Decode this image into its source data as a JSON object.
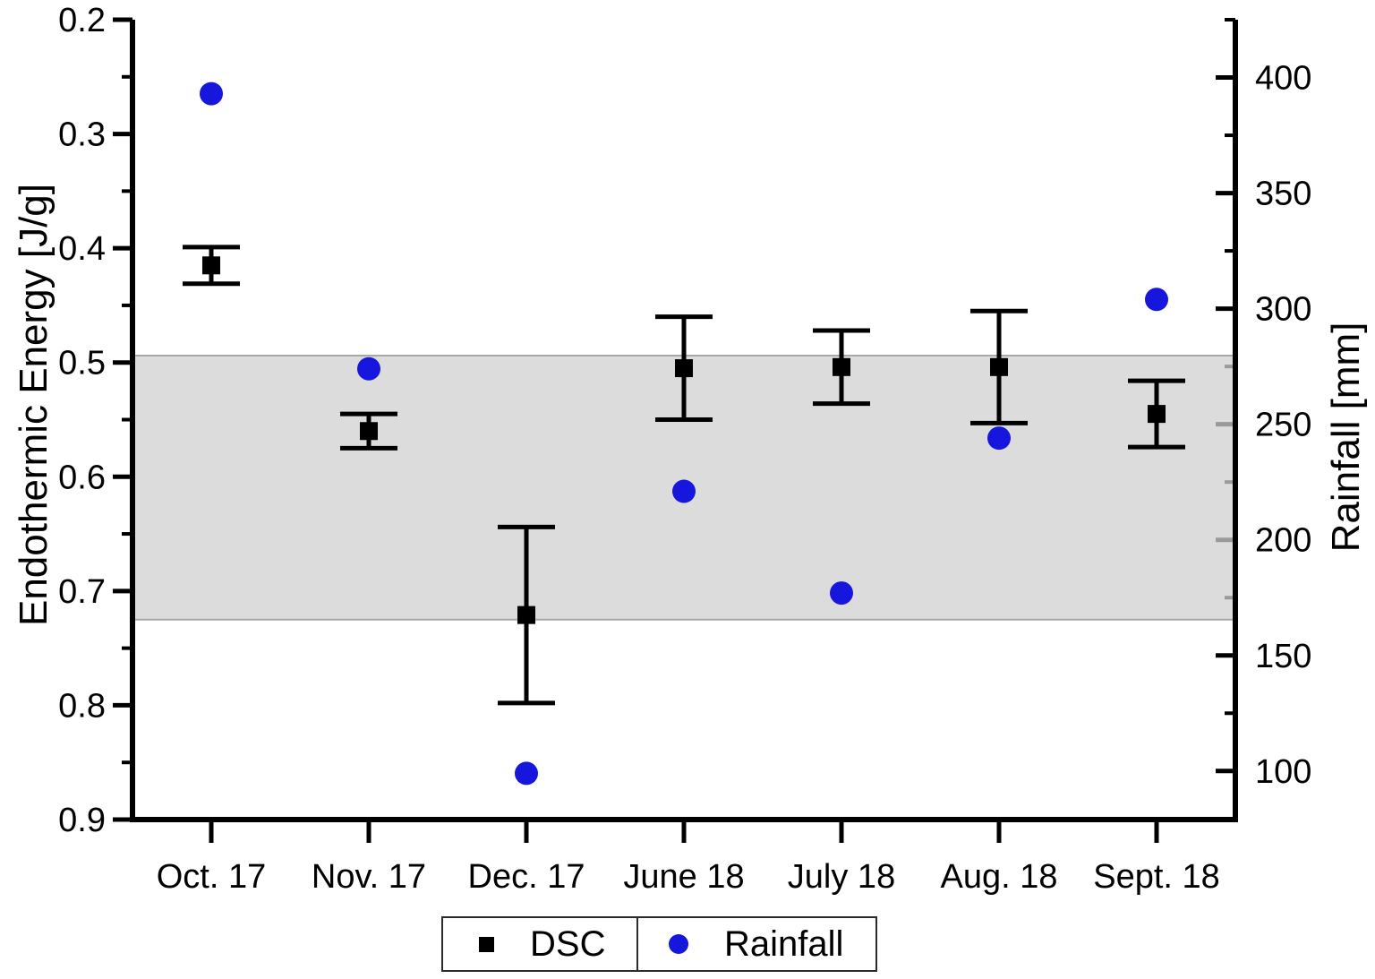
{
  "chart_data": {
    "type": "scatter",
    "title": "",
    "categories": [
      "Oct. 17",
      "Nov. 17",
      "Dec. 17",
      "June 18",
      "July 18",
      "Aug. 18",
      "Sept. 18"
    ],
    "left_axis": {
      "label": "Endothermic Energy [J/g]",
      "min": 0.2,
      "max": 0.9,
      "inverted": true,
      "major_ticks": [
        0.2,
        0.3,
        0.4,
        0.5,
        0.6,
        0.7,
        0.8,
        0.9
      ],
      "minor_ticks": [
        0.25,
        0.35,
        0.45,
        0.55,
        0.65,
        0.75,
        0.85
      ]
    },
    "right_axis": {
      "label": "Rainfall [mm]",
      "top_value": 425,
      "bottom_value": 79,
      "major_ticks": [
        400,
        350,
        300,
        250,
        200,
        150,
        100
      ],
      "minor_ticks": [
        425,
        375,
        325,
        275,
        225,
        175,
        125
      ]
    },
    "series": [
      {
        "name": "DSC",
        "axis": "left",
        "marker": "square",
        "color": "#000000",
        "values": [
          0.415,
          0.56,
          0.721,
          0.505,
          0.504,
          0.504,
          0.545
        ],
        "errors": [
          0.016,
          0.015,
          0.077,
          0.045,
          0.032,
          0.049,
          0.029
        ]
      },
      {
        "name": "Rainfall",
        "axis": "right",
        "marker": "circle",
        "color": "#1616DC",
        "values": [
          393,
          274,
          99,
          221,
          177,
          244,
          304
        ]
      }
    ],
    "reference_band": {
      "axis": "left",
      "from": 0.494,
      "to": 0.725,
      "fill": "#DCDCDC",
      "edge_color": "#A8A8A8"
    },
    "legend": {
      "position": "bottom",
      "items": [
        {
          "label": "DSC",
          "marker": "square",
          "color": "#000000"
        },
        {
          "label": "Rainfall",
          "marker": "circle",
          "color": "#1616DC"
        }
      ]
    },
    "grid": false
  }
}
